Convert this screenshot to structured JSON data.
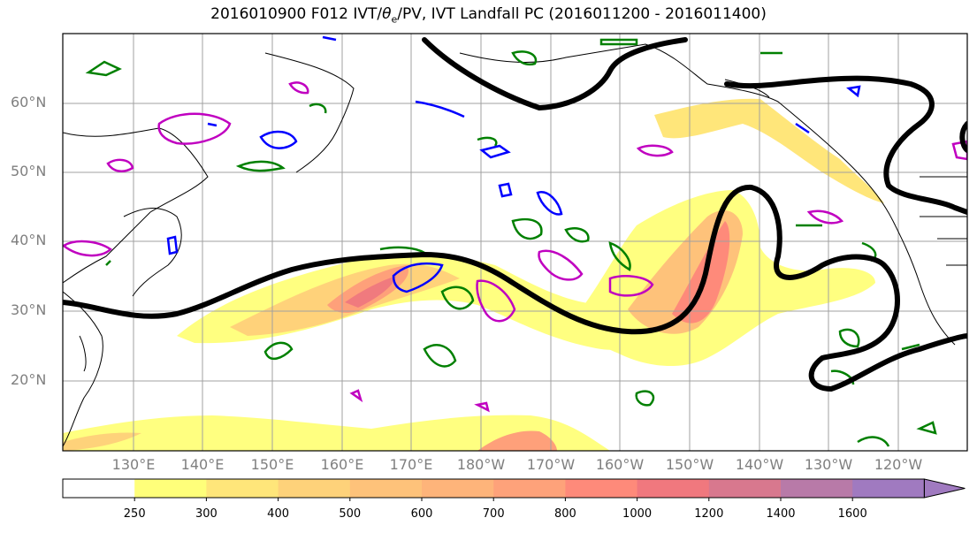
{
  "title": {
    "prefix": "2016010900 F012 IVT/",
    "theta": "θ",
    "theta_sub": "e",
    "suffix": "/PV, IVT Landfall PC (2016011200 - 2016011400)"
  },
  "lat_labels": [
    "60°N",
    "50°N",
    "40°N",
    "30°N",
    "20°N"
  ],
  "lon_labels": [
    "130°E",
    "140°E",
    "150°E",
    "160°E",
    "170°E",
    "180°W",
    "170°W",
    "160°W",
    "150°W",
    "140°W",
    "130°W",
    "120°W"
  ],
  "colorbar": {
    "ticks": [
      "250",
      "300",
      "400",
      "500",
      "600",
      "700",
      "800",
      "1000",
      "1200",
      "1400",
      "1600"
    ],
    "colors": [
      "#ffffff",
      "#ffff7a",
      "#ffe67a",
      "#fed27a",
      "#fec27a",
      "#feb47a",
      "#fea27a",
      "#fe8a7a",
      "#f0787e",
      "#d8788e",
      "#b87aa8",
      "#a07ac0"
    ]
  },
  "contour_colors": {
    "jet_pv": "#000000",
    "theta_e": "#008000",
    "pv_a": "#0000ff",
    "pv_b": "#c000c0"
  }
}
